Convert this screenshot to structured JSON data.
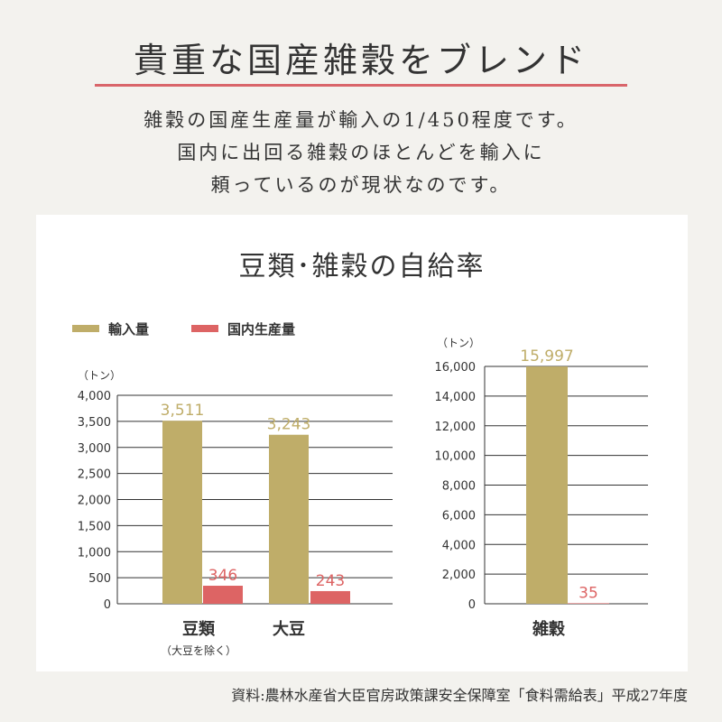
{
  "header": {
    "title": "貴重な国産雑穀をブレンド",
    "intro_lines": [
      "雑穀の国産生産量が輸入の1/450程度です。",
      "国内に出回る雑穀のほとんどを輸入に",
      "頼っているのが現状なのです。"
    ]
  },
  "chart_title": "豆類･雑穀の自給率",
  "legend": [
    {
      "label": "輸入量",
      "color": "#bfad69"
    },
    {
      "label": "国内生産量",
      "color": "#dd6464"
    }
  ],
  "colors": {
    "import": "#bfad69",
    "domestic": "#dd6464"
  },
  "chart_data": [
    {
      "type": "bar",
      "unit_label": "（トン）",
      "categories": [
        "豆類",
        "大豆"
      ],
      "category_sublabels": [
        "（大豆を除く）",
        ""
      ],
      "series": [
        {
          "name": "輸入量",
          "values": [
            3511,
            3243
          ],
          "value_labels": [
            "3,511",
            "3,243"
          ]
        },
        {
          "name": "国内生産量",
          "values": [
            346,
            243
          ],
          "value_labels": [
            "346",
            "243"
          ]
        }
      ],
      "ylim": [
        0,
        4000
      ],
      "yticks": [
        0,
        500,
        1000,
        1500,
        2000,
        2500,
        3000,
        3500,
        4000
      ],
      "ytick_labels": [
        "0",
        "500",
        "1,000",
        "1,500",
        "2,000",
        "2,500",
        "3,000",
        "3,500",
        "4,000"
      ],
      "grid": true
    },
    {
      "type": "bar",
      "unit_label": "（トン）",
      "categories": [
        "雑穀"
      ],
      "category_sublabels": [
        ""
      ],
      "series": [
        {
          "name": "輸入量",
          "values": [
            15997
          ],
          "value_labels": [
            "15,997"
          ]
        },
        {
          "name": "国内生産量",
          "values": [
            35
          ],
          "value_labels": [
            "35"
          ]
        }
      ],
      "ylim": [
        0,
        16000
      ],
      "yticks": [
        0,
        2000,
        4000,
        6000,
        8000,
        10000,
        12000,
        14000,
        16000
      ],
      "ytick_labels": [
        "0",
        "2,000",
        "4,000",
        "6,000",
        "8,000",
        "10,000",
        "12,000",
        "14,000",
        "16,000"
      ],
      "grid": true
    }
  ],
  "source": "資料:農林水産省大臣官房政策課安全保障室「食料需給表」平成27年度"
}
